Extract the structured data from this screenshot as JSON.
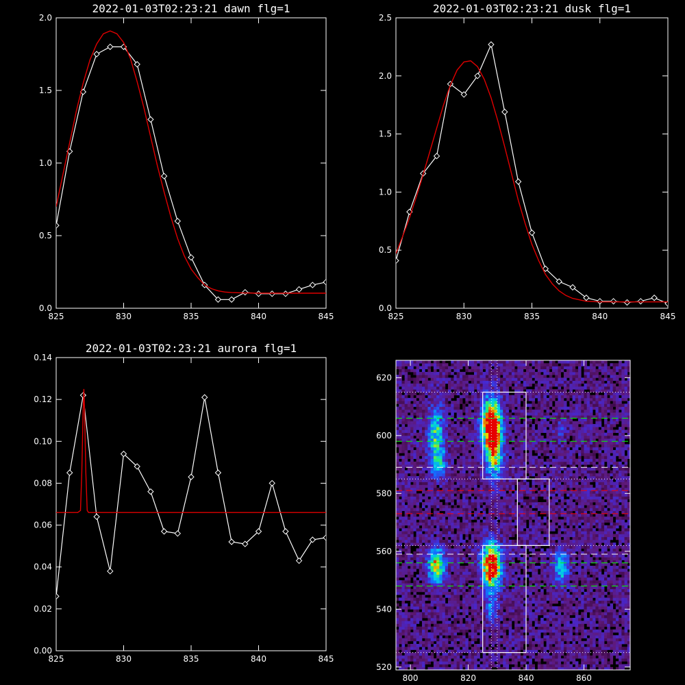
{
  "chart_data": [
    {
      "id": "dawn",
      "type": "line",
      "title": "2022-01-03T02:23:21 dawn flg=1",
      "xlim": [
        825,
        845
      ],
      "ylim": [
        0,
        2.0
      ],
      "xticks": [
        "825",
        "830",
        "835",
        "840",
        "845"
      ],
      "yticks": [
        "0.0",
        "0.5",
        "1.0",
        "1.5",
        "2.0"
      ],
      "series": [
        {
          "style": "white-line-diamonds",
          "x": [
            825,
            826,
            827,
            828,
            829,
            830,
            831,
            832,
            833,
            834,
            835,
            836,
            837,
            838,
            839,
            840,
            841,
            842,
            843,
            844,
            845
          ],
          "y": [
            0.57,
            1.08,
            1.49,
            1.75,
            1.8,
            1.8,
            1.68,
            1.3,
            0.91,
            0.6,
            0.35,
            0.16,
            0.06,
            0.06,
            0.11,
            0.1,
            0.1,
            0.1,
            0.13,
            0.16,
            0.18
          ]
        },
        {
          "style": "red-fit",
          "x": [
            825,
            825.5,
            826,
            826.5,
            827,
            827.5,
            828,
            828.5,
            829,
            829.5,
            830,
            830.5,
            831,
            831.5,
            832,
            832.5,
            833,
            833.5,
            834,
            834.5,
            835,
            835.5,
            836,
            836.5,
            837,
            837.5,
            838,
            839,
            840,
            841,
            842,
            843,
            844,
            845
          ],
          "y": [
            0.7,
            0.92,
            1.14,
            1.36,
            1.55,
            1.71,
            1.82,
            1.89,
            1.91,
            1.89,
            1.83,
            1.72,
            1.56,
            1.38,
            1.18,
            0.98,
            0.8,
            0.63,
            0.48,
            0.36,
            0.27,
            0.21,
            0.16,
            0.135,
            0.12,
            0.112,
            0.108,
            0.105,
            0.104,
            0.104,
            0.104,
            0.104,
            0.104,
            0.104
          ]
        }
      ]
    },
    {
      "id": "dusk",
      "type": "line",
      "title": "2022-01-03T02:23:21 dusk flg=1",
      "xlim": [
        825,
        845
      ],
      "ylim": [
        0,
        2.5
      ],
      "xticks": [
        "825",
        "830",
        "835",
        "840",
        "845"
      ],
      "yticks": [
        "0.0",
        "0.5",
        "1.0",
        "1.5",
        "2.0",
        "2.5"
      ],
      "series": [
        {
          "style": "white-line-diamonds",
          "x": [
            825,
            826,
            827,
            828,
            829,
            830,
            831,
            832,
            833,
            834,
            835,
            836,
            837,
            838,
            839,
            840,
            841,
            842,
            843,
            844,
            845
          ],
          "y": [
            0.41,
            0.83,
            1.16,
            1.31,
            1.93,
            1.84,
            2.0,
            2.27,
            1.69,
            1.09,
            0.65,
            0.34,
            0.23,
            0.18,
            0.09,
            0.06,
            0.06,
            0.05,
            0.06,
            0.09,
            0.04
          ]
        },
        {
          "style": "red-fit",
          "x": [
            825,
            825.5,
            826,
            826.5,
            827,
            827.5,
            828,
            828.5,
            829,
            829.5,
            830,
            830.5,
            831,
            831.5,
            832,
            832.5,
            833,
            833.5,
            834,
            834.5,
            835,
            835.5,
            836,
            836.5,
            837,
            837.5,
            838,
            839,
            840,
            841,
            842,
            843,
            844,
            845
          ],
          "y": [
            0.47,
            0.62,
            0.78,
            0.96,
            1.15,
            1.35,
            1.55,
            1.75,
            1.92,
            2.05,
            2.12,
            2.13,
            2.08,
            1.97,
            1.81,
            1.61,
            1.39,
            1.16,
            0.93,
            0.73,
            0.55,
            0.41,
            0.29,
            0.21,
            0.15,
            0.11,
            0.085,
            0.06,
            0.055,
            0.055,
            0.055,
            0.055,
            0.055,
            0.055
          ]
        }
      ]
    },
    {
      "id": "aurora",
      "type": "line",
      "title": "2022-01-03T02:23:21 aurora flg=1",
      "xlim": [
        825,
        845
      ],
      "ylim": [
        0,
        0.14
      ],
      "xticks": [
        "825",
        "830",
        "835",
        "840",
        "845"
      ],
      "yticks": [
        "0.00",
        "0.02",
        "0.04",
        "0.06",
        "0.08",
        "0.10",
        "0.12",
        "0.14"
      ],
      "series": [
        {
          "style": "white-line-diamonds",
          "x": [
            825,
            826,
            827,
            828,
            829,
            830,
            831,
            832,
            833,
            834,
            835,
            836,
            837,
            838,
            839,
            840,
            841,
            842,
            843,
            844,
            845
          ],
          "y": [
            0.026,
            0.085,
            0.122,
            0.064,
            0.038,
            0.094,
            0.088,
            0.076,
            0.057,
            0.056,
            0.083,
            0.121,
            0.085,
            0.052,
            0.051,
            0.057,
            0.08,
            0.057,
            0.043,
            0.053,
            0.054
          ]
        },
        {
          "style": "red-fit",
          "x": [
            825,
            826.6,
            826.8,
            826.9,
            827.0,
            827.05,
            827.1,
            827.2,
            827.3,
            827.4,
            845
          ],
          "y": [
            0.066,
            0.066,
            0.067,
            0.085,
            0.115,
            0.125,
            0.115,
            0.085,
            0.067,
            0.066,
            0.066
          ]
        }
      ]
    },
    {
      "id": "image",
      "type": "heatmap",
      "xlim": [
        795,
        876
      ],
      "ylim": [
        519,
        626
      ],
      "xticks": [
        "800",
        "820",
        "840",
        "860"
      ],
      "yticks": [
        "520",
        "540",
        "560",
        "580",
        "600",
        "620"
      ],
      "blobs": [
        {
          "x": 828,
          "y": 604,
          "sx": 2.2,
          "sy": 6,
          "amp": 1.0
        },
        {
          "x": 829,
          "y": 594,
          "sx": 2.0,
          "sy": 6,
          "amp": 0.55
        },
        {
          "x": 809,
          "y": 600,
          "sx": 2.0,
          "sy": 7,
          "amp": 0.45
        },
        {
          "x": 810,
          "y": 590,
          "sx": 1.8,
          "sy": 3,
          "amp": 0.3
        },
        {
          "x": 828,
          "y": 555,
          "sx": 2.2,
          "sy": 5,
          "amp": 1.0
        },
        {
          "x": 809,
          "y": 555,
          "sx": 2.0,
          "sy": 4,
          "amp": 0.6
        },
        {
          "x": 852,
          "y": 554,
          "sx": 1.8,
          "sy": 4,
          "amp": 0.4
        },
        {
          "x": 852,
          "y": 602,
          "sx": 1.5,
          "sy": 3,
          "amp": 0.12
        },
        {
          "x": 828,
          "y": 541,
          "sx": 1.5,
          "sy": 4,
          "amp": 0.25
        }
      ],
      "boxes": [
        {
          "x0": 825,
          "x1": 840,
          "y0": 585,
          "y1": 615
        },
        {
          "x0": 837,
          "x1": 848,
          "y0": 562,
          "y1": 585
        },
        {
          "x0": 825,
          "x1": 840,
          "y0": 525,
          "y1": 562
        }
      ],
      "hlines": [
        {
          "y": 615,
          "color": "#ffffff",
          "dash": "dot"
        },
        {
          "y": 585,
          "color": "#ffffff",
          "dash": "dot"
        },
        {
          "y": 562,
          "color": "#ffffff",
          "dash": "dot"
        },
        {
          "y": 525,
          "color": "#ffffff",
          "dash": "dot"
        },
        {
          "y": 606,
          "color": "#00ff00",
          "dash": "long"
        },
        {
          "y": 598,
          "color": "#00ff00",
          "dash": "long"
        },
        {
          "y": 589,
          "color": "#ffffff",
          "dash": "long"
        },
        {
          "y": 581,
          "color": "#ff0000",
          "dash": "long"
        },
        {
          "y": 573,
          "color": "#ff0000",
          "dash": "long"
        },
        {
          "y": 559,
          "color": "#ffffff",
          "dash": "long"
        },
        {
          "y": 556,
          "color": "#00ff00",
          "dash": "long"
        },
        {
          "y": 548,
          "color": "#00ff00",
          "dash": "long"
        }
      ],
      "vlines": [
        828,
        830
      ]
    }
  ]
}
